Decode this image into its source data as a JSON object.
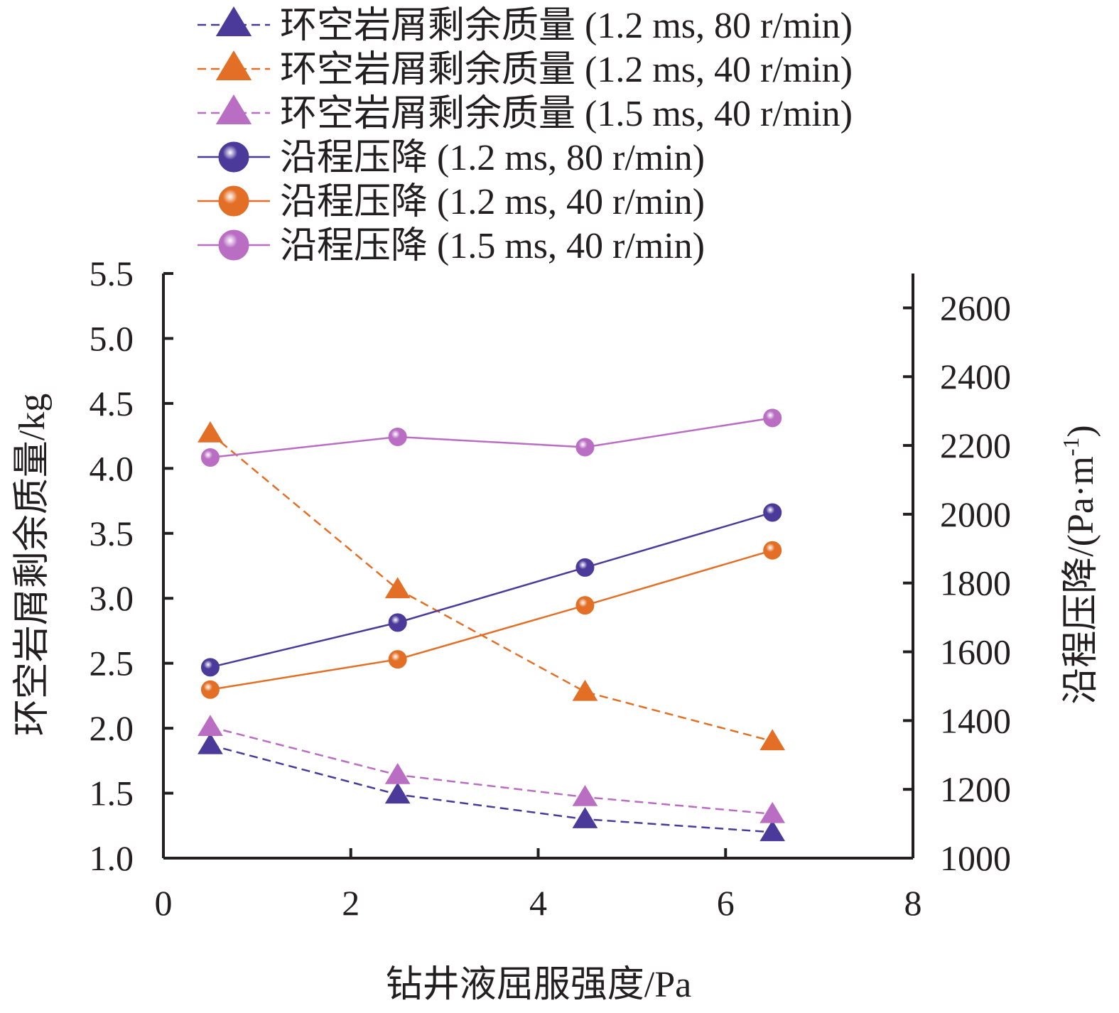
{
  "chart_data": {
    "type": "line",
    "xlabel": "钻井液屈服强度/Pa",
    "ylabel_left": "环空岩屑剩余质量/kg",
    "ylabel_right": "沿程压降/(Pa·m",
    "ylabel_right_sup": "-1",
    "ylabel_right_close": ")",
    "xlim": [
      0,
      8
    ],
    "ylim_left": [
      1.0,
      5.5
    ],
    "ylim_right": [
      1000,
      2700
    ],
    "x_ticks": [
      "0",
      "2",
      "4",
      "6",
      "8"
    ],
    "y_ticks_left": [
      "1.0",
      "1.5",
      "2.0",
      "2.5",
      "3.0",
      "3.5",
      "4.0",
      "4.5",
      "5.0",
      "5.5"
    ],
    "y_ticks_right": [
      "1000",
      "1200",
      "1400",
      "1600",
      "1800",
      "2000",
      "2200",
      "2400",
      "2600"
    ],
    "x": [
      0.5,
      2.5,
      4.5,
      6.5
    ],
    "grid": false,
    "legend_position": "top",
    "series": [
      {
        "name": "环空岩屑剩余质量 (1.2 ms, 80 r/min)",
        "axis": "left",
        "marker": "triangle",
        "dash": true,
        "color": "#4b3a9a",
        "values": [
          1.87,
          1.49,
          1.3,
          1.2
        ]
      },
      {
        "name": "环空岩屑剩余质量 (1.2 ms, 40 r/min)",
        "axis": "left",
        "marker": "triangle",
        "dash": true,
        "color": "#e36f26",
        "values": [
          4.27,
          3.07,
          2.28,
          1.9
        ]
      },
      {
        "name": "环空岩屑剩余质量 (1.5 ms, 40 r/min)",
        "axis": "left",
        "marker": "triangle",
        "dash": true,
        "color": "#b96ec4",
        "values": [
          2.01,
          1.64,
          1.47,
          1.34
        ]
      },
      {
        "name": "沿程压降 (1.2 ms, 80 r/min)",
        "axis": "right",
        "marker": "circle",
        "dash": false,
        "color": "#4b3a9a",
        "values": [
          1555,
          1685,
          1845,
          2005
        ]
      },
      {
        "name": "沿程压降 (1.2 ms, 40 r/min)",
        "axis": "right",
        "marker": "circle",
        "dash": false,
        "color": "#e36f26",
        "values": [
          1490,
          1578,
          1735,
          1895
        ]
      },
      {
        "name": "沿程压降 (1.5 ms, 40 r/min)",
        "axis": "right",
        "marker": "circle",
        "dash": false,
        "color": "#b96ec4",
        "values": [
          2165,
          2225,
          2195,
          2280
        ]
      }
    ]
  }
}
